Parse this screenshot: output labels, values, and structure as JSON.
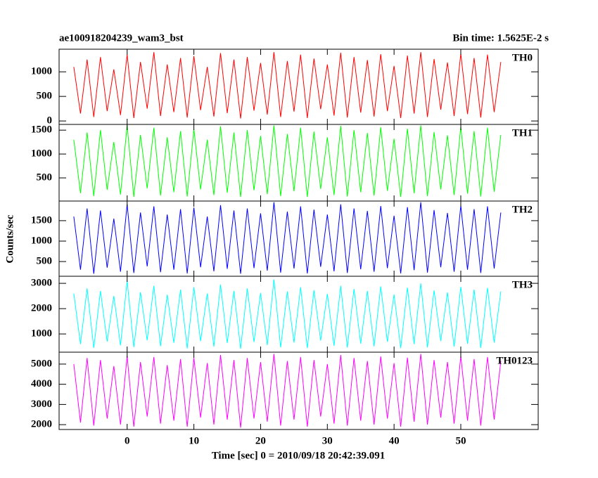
{
  "chart_data": {
    "type": "line",
    "title": "ae100918204239_wam3_bst",
    "subtitle": "Bin time: 1.5625E-2 s",
    "ylabel": "Counts/sec",
    "xlabel": "Time [sec] 0 = 2010/09/18 20:42:39.091",
    "xlim": [
      -10.2,
      61.6
    ],
    "xticks": [
      0,
      10,
      20,
      30,
      40,
      50
    ],
    "x": [
      -8,
      -7,
      -6,
      -5,
      -4,
      -3,
      -2,
      -1,
      0,
      1,
      2,
      3,
      4,
      5,
      6,
      7,
      8,
      9,
      10,
      11,
      12,
      13,
      14,
      15,
      16,
      17,
      18,
      19,
      20,
      21,
      22,
      23,
      24,
      25,
      26,
      27,
      28,
      29,
      30,
      31,
      32,
      33,
      34,
      35,
      36,
      37,
      38,
      39,
      40,
      41,
      42,
      43,
      44,
      45,
      46,
      47,
      48,
      49,
      50,
      51,
      52,
      53,
      54,
      55,
      56
    ],
    "series": [
      {
        "name": "TH0",
        "color": "#ff0000",
        "ylim": [
          -70,
          1460
        ],
        "yticks": [
          0,
          500,
          1000
        ],
        "values": [
          1100,
          150,
          1250,
          80,
          1300,
          200,
          1050,
          120,
          1350,
          60,
          1200,
          250,
          1400,
          100,
          1150,
          180,
          1280,
          70,
          1320,
          220,
          1100,
          90,
          1380,
          160,
          1250,
          50,
          1300,
          210,
          1180,
          130,
          1400,
          80,
          1220,
          190,
          1350,
          60,
          1270,
          240,
          1150,
          110,
          1390,
          70,
          1300,
          170,
          1240,
          90,
          1360,
          200,
          1120,
          60,
          1330,
          150,
          1400,
          80,
          1260,
          230,
          1190,
          100,
          1370,
          140,
          1280,
          70,
          1350,
          180,
          1200
        ]
      },
      {
        "name": "TH1",
        "color": "#00ff00",
        "ylim": [
          15,
          1620
        ],
        "yticks": [
          500,
          1000,
          1500
        ],
        "values": [
          1300,
          180,
          1450,
          120,
          1500,
          250,
          1250,
          150,
          1600,
          100,
          1400,
          280,
          1550,
          130,
          1350,
          200,
          1480,
          110,
          1520,
          260,
          1300,
          140,
          1580,
          190,
          1450,
          100,
          1500,
          240,
          1380,
          160,
          1600,
          120,
          1420,
          220,
          1550,
          100,
          1470,
          270,
          1350,
          140,
          1590,
          110,
          1500,
          200,
          1440,
          130,
          1560,
          230,
          1320,
          100,
          1530,
          180,
          1600,
          120,
          1460,
          260,
          1390,
          140,
          1570,
          170,
          1480,
          110,
          1550,
          210,
          1400
        ]
      },
      {
        "name": "TH2",
        "color": "#0000ff",
        "ylim": [
          140,
          1980
        ],
        "yticks": [
          500,
          1000,
          1500
        ],
        "values": [
          1600,
          300,
          1800,
          200,
          1750,
          350,
          1550,
          250,
          1900,
          220,
          1700,
          380,
          1850,
          240,
          1650,
          300,
          1780,
          210,
          1820,
          360,
          1600,
          260,
          1880,
          320,
          1750,
          200,
          1800,
          340,
          1680,
          280,
          1950,
          230,
          1720,
          330,
          1850,
          210,
          1770,
          370,
          1650,
          260,
          1900,
          220,
          1800,
          310,
          1740,
          250,
          1860,
          340,
          1620,
          210,
          1830,
          290,
          1950,
          230,
          1760,
          360,
          1690,
          250,
          1870,
          300,
          1780,
          220,
          1850,
          330,
          1700
        ]
      },
      {
        "name": "TH3",
        "color": "#00ffff",
        "ylim": [
          280,
          3280
        ],
        "yticks": [
          1000,
          2000,
          3000
        ],
        "values": [
          2600,
          600,
          2800,
          450,
          2700,
          700,
          2500,
          550,
          3100,
          480,
          2650,
          750,
          2900,
          520,
          2550,
          650,
          2750,
          430,
          2850,
          720,
          2600,
          500,
          2950,
          640,
          2700,
          420,
          2800,
          680,
          2620,
          560,
          3150,
          470,
          2680,
          660,
          2850,
          440,
          2730,
          740,
          2580,
          530,
          2900,
          460,
          2780,
          620,
          2700,
          510,
          2880,
          690,
          2560,
          440,
          2830,
          600,
          3000,
          470,
          2720,
          720,
          2640,
          500,
          2860,
          610,
          2750,
          450,
          2820,
          660,
          2680
        ]
      },
      {
        "name": "TH0123",
        "color": "#ff00ff",
        "ylim": [
          1760,
          5590
        ],
        "yticks": [
          2000,
          3000,
          4000,
          5000
        ],
        "values": [
          5000,
          2100,
          5300,
          1950,
          5200,
          2300,
          4900,
          2000,
          5400,
          1900,
          5100,
          2400,
          5350,
          2050,
          4950,
          2200,
          5250,
          1900,
          5300,
          2350,
          5050,
          2000,
          5450,
          2250,
          5200,
          1850,
          5300,
          2300,
          5100,
          2150,
          5500,
          1950,
          5150,
          2250,
          5350,
          1900,
          5200,
          2400,
          5000,
          2050,
          5450,
          1950,
          5300,
          2200,
          5150,
          2000,
          5380,
          2300,
          5050,
          1900,
          5320,
          2150,
          5500,
          2000,
          5200,
          2350,
          5100,
          2050,
          5400,
          2200,
          5250,
          1950,
          5350,
          2250,
          5150
        ]
      }
    ]
  }
}
